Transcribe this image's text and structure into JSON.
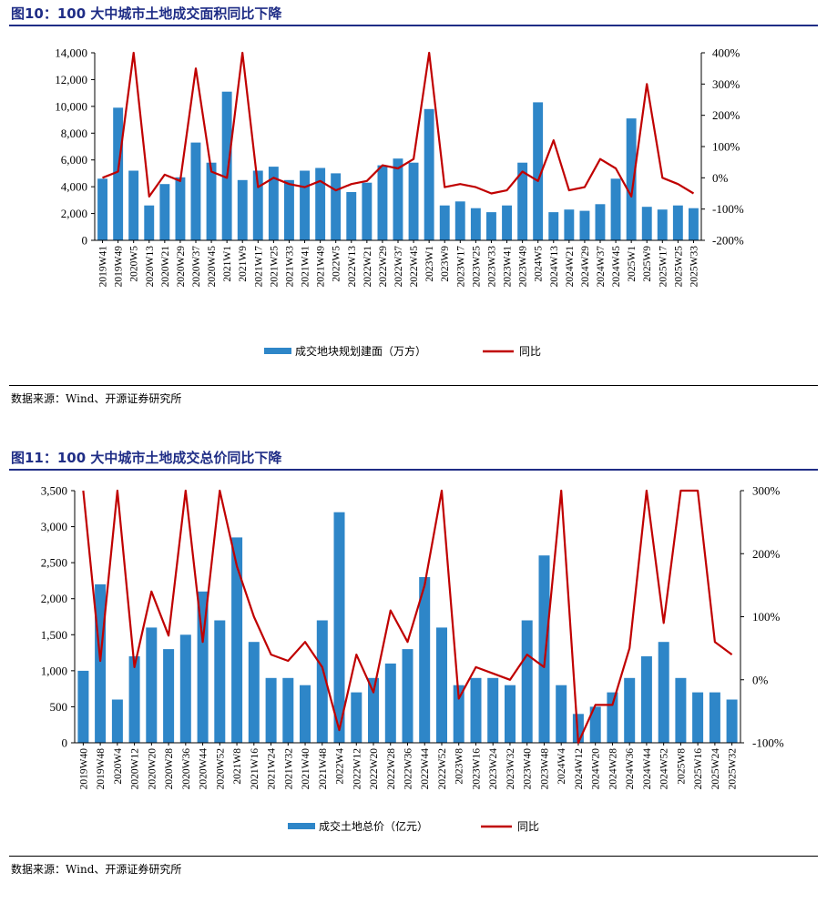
{
  "figures": [
    {
      "title": "图10：100 大中城市土地成交面积同比下降",
      "source": "数据来源：Wind、开源证券研究所",
      "legend_bar": "成交地块规划建面（万方）",
      "legend_line": "同比",
      "colors": {
        "bar": "#2e86c8",
        "line": "#c00000"
      }
    },
    {
      "title": "图11：100 大中城市土地成交总价同比下降",
      "source": "数据来源：Wind、开源证券研究所",
      "legend_bar": "成交土地总价（亿元）",
      "legend_line": "同比",
      "colors": {
        "bar": "#2e86c8",
        "line": "#c00000"
      }
    }
  ],
  "chart_data": [
    {
      "type": "bar",
      "combo": "bar+line (secondary axis)",
      "categories": [
        "2019W41",
        "2019W49",
        "2020W5",
        "2020W13",
        "2020W21",
        "2020W29",
        "2020W37",
        "2020W45",
        "2021W1",
        "2021W9",
        "2021W17",
        "2021W25",
        "2021W33",
        "2021W41",
        "2021W49",
        "2022W5",
        "2022W13",
        "2022W21",
        "2022W29",
        "2022W37",
        "2022W45",
        "2023W1",
        "2023W9",
        "2023W17",
        "2023W25",
        "2023W33",
        "2023W41",
        "2023W49",
        "2024W5",
        "2024W13",
        "2024W21",
        "2024W29",
        "2024W37",
        "2024W45",
        "2025W1",
        "2025W9",
        "2025W17",
        "2025W25",
        "2025W33"
      ],
      "series": [
        {
          "name": "成交地块规划建面（万方）",
          "axis": "left",
          "values": [
            4600,
            9900,
            5200,
            2600,
            4200,
            4700,
            7300,
            5800,
            11100,
            4500,
            5200,
            5500,
            4500,
            5200,
            5400,
            5000,
            3600,
            4300,
            5600,
            6100,
            5800,
            9800,
            2600,
            2900,
            2400,
            2100,
            2600,
            5800,
            10300,
            2100,
            2300,
            2200,
            2700,
            4600,
            9100,
            2500,
            2300,
            2600,
            2400
          ]
        },
        {
          "name": "同比",
          "axis": "right",
          "unit": "%",
          "values": [
            0,
            20,
            400,
            -60,
            10,
            -10,
            350,
            20,
            0,
            400,
            -30,
            0,
            -20,
            -30,
            -10,
            -40,
            -20,
            -10,
            40,
            30,
            60,
            400,
            -30,
            -20,
            -30,
            -50,
            -40,
            20,
            -10,
            120,
            -40,
            -30,
            60,
            30,
            -60,
            300,
            0,
            -20,
            -50
          ]
        }
      ],
      "y_left": {
        "ticks": [
          "0",
          "2,000",
          "4,000",
          "6,000",
          "8,000",
          "10,000",
          "12,000",
          "14,000"
        ],
        "ylim": [
          0,
          14000
        ]
      },
      "y_right": {
        "ticks": [
          "-200%",
          "-100%",
          "0%",
          "100%",
          "200%",
          "300%",
          "400%"
        ],
        "ylim": [
          -200,
          400
        ]
      },
      "grid": false,
      "legend_position": "bottom"
    },
    {
      "type": "bar",
      "combo": "bar+line (secondary axis)",
      "categories": [
        "2019W40",
        "2019W48",
        "2020W4",
        "2020W12",
        "2020W20",
        "2020W28",
        "2020W36",
        "2020W44",
        "2020W52",
        "2021W8",
        "2021W16",
        "2021W24",
        "2021W32",
        "2021W40",
        "2021W48",
        "2022W4",
        "2022W12",
        "2022W20",
        "2022W28",
        "2022W36",
        "2022W44",
        "2022W52",
        "2023W8",
        "2023W16",
        "2023W24",
        "2023W32",
        "2023W40",
        "2023W48",
        "2024W4",
        "2024W12",
        "2024W20",
        "2024W28",
        "2024W36",
        "2024W44",
        "2024W52",
        "2025W8",
        "2025W16",
        "2025W24",
        "2025W32"
      ],
      "series": [
        {
          "name": "成交土地总价（亿元）",
          "axis": "left",
          "values": [
            1000,
            2200,
            600,
            1200,
            1600,
            1300,
            1500,
            2100,
            1700,
            2850,
            1400,
            900,
            900,
            800,
            1700,
            3200,
            700,
            900,
            1100,
            1300,
            2300,
            1600,
            800,
            900,
            900,
            800,
            1700,
            2600,
            800,
            400,
            500,
            700,
            900,
            1200,
            1400,
            900,
            700,
            700,
            600
          ]
        },
        {
          "name": "同比",
          "axis": "right",
          "unit": "%",
          "values": [
            300,
            30,
            300,
            20,
            140,
            70,
            300,
            60,
            300,
            180,
            100,
            40,
            30,
            60,
            20,
            -80,
            40,
            -20,
            110,
            60,
            150,
            300,
            -30,
            20,
            10,
            0,
            40,
            20,
            300,
            -100,
            -40,
            -40,
            50,
            300,
            90,
            300,
            300,
            60,
            40
          ]
        }
      ],
      "y_left": {
        "ticks": [
          "0",
          "500",
          "1,000",
          "1,500",
          "2,000",
          "2,500",
          "3,000",
          "3,500"
        ],
        "ylim": [
          0,
          3500
        ]
      },
      "y_right": {
        "ticks": [
          "-100%",
          "0%",
          "100%",
          "200%",
          "300%"
        ],
        "ylim": [
          -100,
          300
        ]
      },
      "grid": false,
      "legend_position": "bottom"
    }
  ]
}
